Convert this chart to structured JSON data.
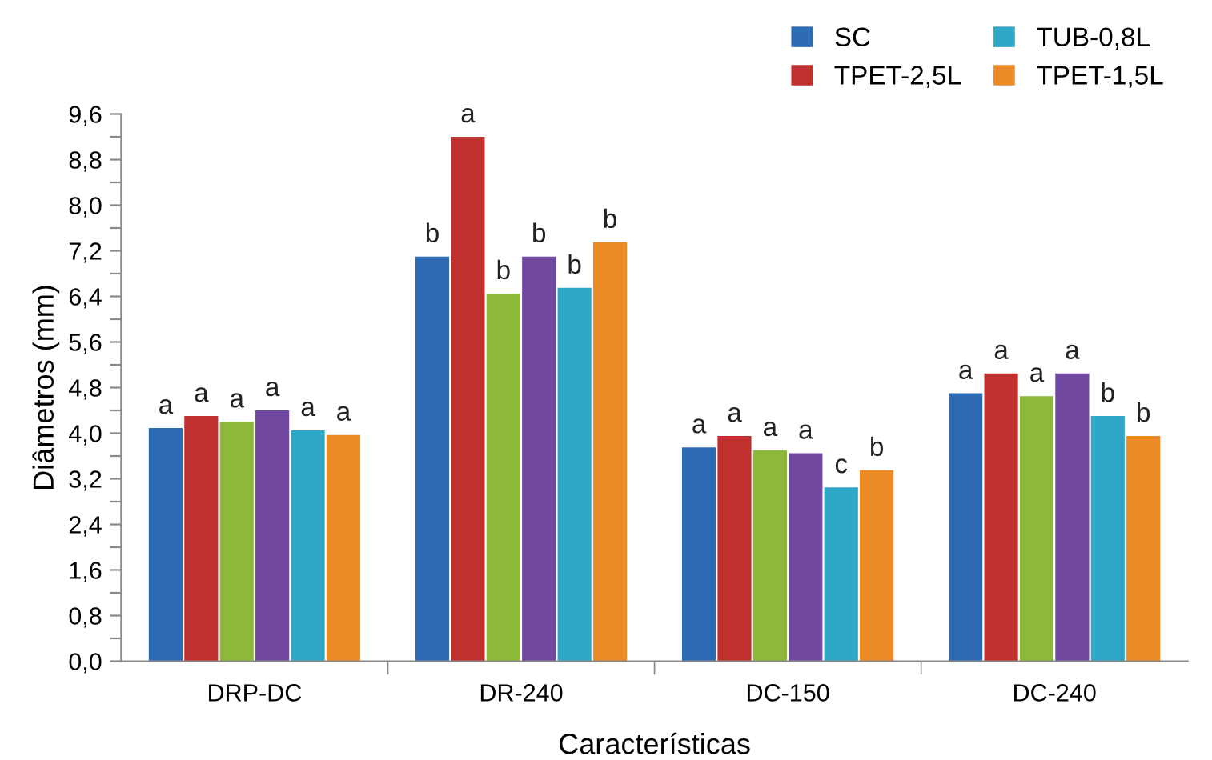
{
  "chart_data": {
    "type": "bar",
    "xlabel": "Características",
    "ylabel": "Diâmetros (mm)",
    "categories": [
      "DRP-DC",
      "DR-240",
      "DC-150",
      "DC-240"
    ],
    "series": [
      {
        "name": "SC",
        "color": "#2e6bb5",
        "values": [
          4.09,
          7.1,
          3.75,
          4.7
        ],
        "value_labels": [
          "a",
          "b",
          "a",
          "a"
        ]
      },
      {
        "name": "TPET-2,5L",
        "color": "#c0302e",
        "values": [
          4.3,
          9.2,
          3.95,
          5.05
        ],
        "value_labels": [
          "a",
          "a",
          "a",
          "a"
        ]
      },
      {
        "color": "#8db83a",
        "values": [
          4.2,
          6.45,
          3.7,
          4.65
        ],
        "value_labels": [
          "a",
          "b",
          "a",
          "a"
        ]
      },
      {
        "color": "#7048a0",
        "values": [
          4.4,
          7.1,
          3.65,
          5.05
        ],
        "value_labels": [
          "a",
          "b",
          "a",
          "a"
        ]
      },
      {
        "name": "TUB-0,8L",
        "color": "#2fa8c8",
        "values": [
          4.05,
          6.55,
          3.05,
          4.3
        ],
        "value_labels": [
          "a",
          "b",
          "c",
          "b"
        ]
      },
      {
        "name": "TPET-1,5L",
        "color": "#ec8a25",
        "values": [
          3.97,
          7.35,
          3.35,
          3.95
        ],
        "value_labels": [
          "a",
          "b",
          "b",
          "b"
        ]
      }
    ],
    "ylim": [
      0,
      9.6
    ],
    "yticks": [
      {
        "value": 0,
        "label": "0,0"
      },
      {
        "value": 0.4,
        "label": null
      },
      {
        "value": 0.8,
        "label": "0,8"
      },
      {
        "value": 1.2,
        "label": null
      },
      {
        "value": 1.6,
        "label": "1,6"
      },
      {
        "value": 2.0,
        "label": null
      },
      {
        "value": 2.4,
        "label": "2,4"
      },
      {
        "value": 2.8,
        "label": null
      },
      {
        "value": 3.2,
        "label": "3,2"
      },
      {
        "value": 3.6,
        "label": null
      },
      {
        "value": 4.0,
        "label": "4,0"
      },
      {
        "value": 4.4,
        "label": null
      },
      {
        "value": 4.8,
        "label": "4,8"
      },
      {
        "value": 5.2,
        "label": null
      },
      {
        "value": 5.6,
        "label": "5,6"
      },
      {
        "value": 6.0,
        "label": null
      },
      {
        "value": 6.4,
        "label": "6,4"
      },
      {
        "value": 6.8,
        "label": null
      },
      {
        "value": 7.2,
        "label": "7,2"
      },
      {
        "value": 7.6,
        "label": null
      },
      {
        "value": 8.0,
        "label": "8,0"
      },
      {
        "value": 8.4,
        "label": null
      },
      {
        "value": 8.8,
        "label": "8,8"
      },
      {
        "value": 9.2,
        "label": null
      },
      {
        "value": 9.6,
        "label": "9,6"
      }
    ],
    "grid": false,
    "legend": "top right"
  }
}
